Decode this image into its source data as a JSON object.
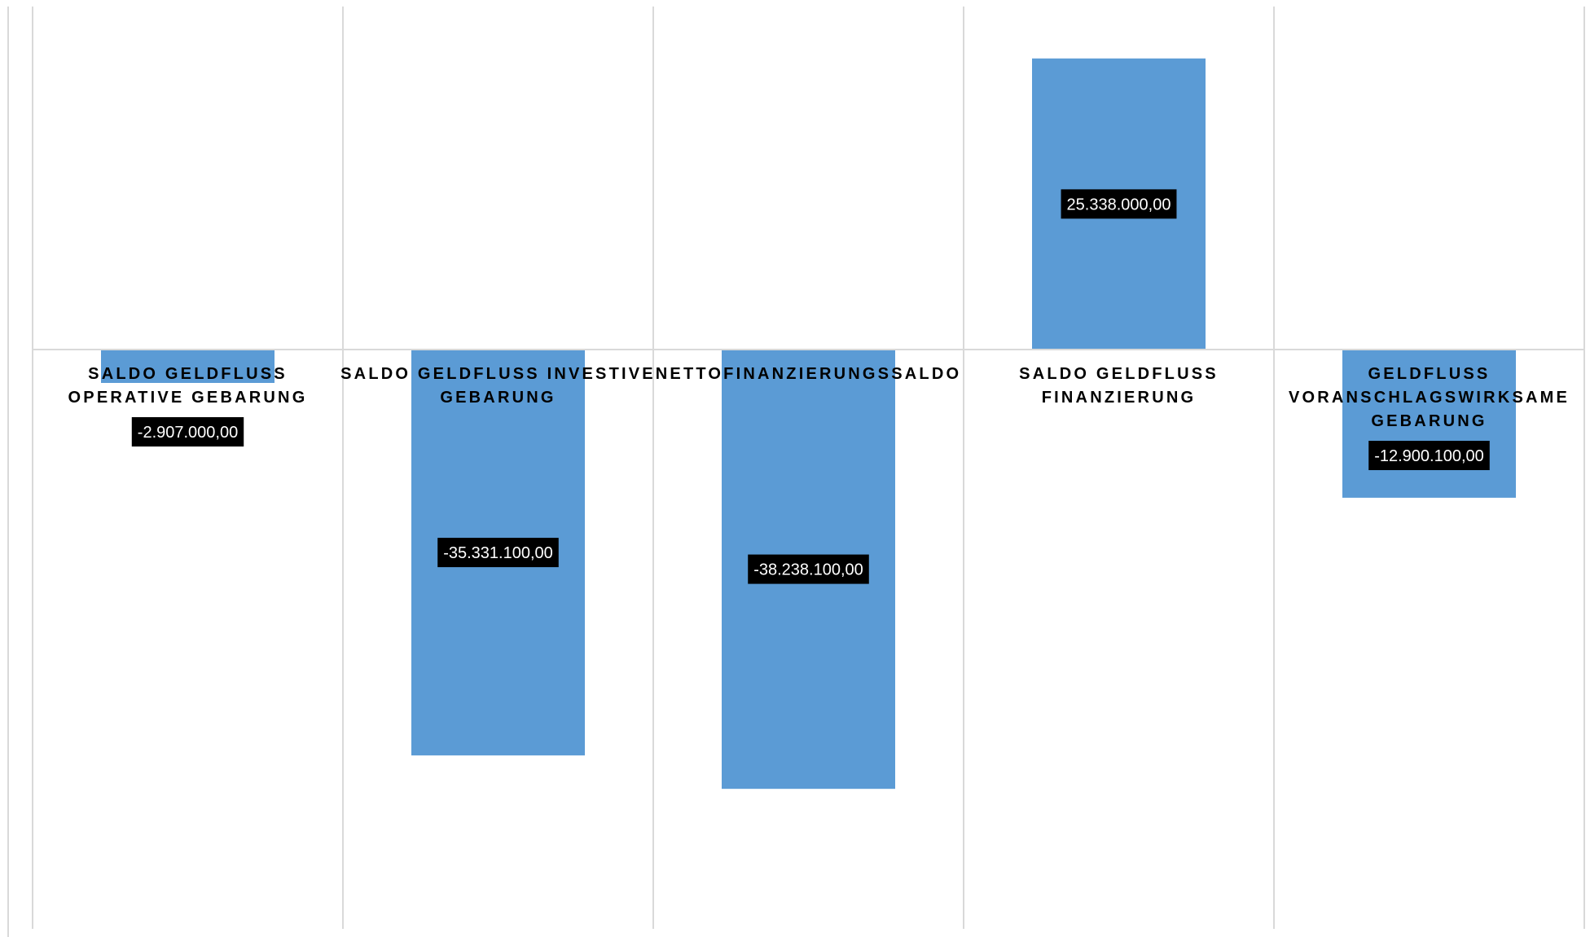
{
  "chart_data": {
    "type": "bar",
    "title": "",
    "xlabel": "",
    "ylabel": "",
    "categories": [
      "SALDO GELDFLUSS OPERATIVE GEBARUNG",
      "SALDO GELDFLUSS INVESTIVE GEBARUNG",
      "NETTOFINANZIERUNGSSALDO",
      "SALDO GELDFLUSS FINANZIERUNG",
      "GELDFLUSS VORANSCHLAGSWIRKSAME GEBARUNG"
    ],
    "category_label_lines": [
      [
        "SALDO GELDFLUSS",
        "OPERATIVE GEBARUNG"
      ],
      [
        "SALDO GELDFLUSS INVESTIVE",
        "GEBARUNG"
      ],
      [
        "NETTOFINANZIERUNGSSALDO"
      ],
      [
        "SALDO GELDFLUSS",
        "FINANZIERUNG"
      ],
      [
        "GELDFLUSS",
        "VORANSCHLAGSWIRKSAME",
        "GEBARUNG"
      ]
    ],
    "values": [
      -2907000,
      -35331100,
      -38238100,
      25338000,
      -12900100
    ],
    "data_labels": [
      "-2.907.000,00",
      "-35.331.100,00",
      "-38.238.100,00",
      "25.338.000,00",
      "-12.900.100,00"
    ],
    "ylim": [
      -50000000,
      30000000
    ],
    "y_axis_visible": false,
    "grid": "vertical category separators",
    "legend": "none",
    "colors": {
      "bar": "#5B9BD5",
      "label_box": "#000000",
      "label_text": "#FFFFFF",
      "grid": "#D9D9D9",
      "category_text": "#000000"
    }
  }
}
